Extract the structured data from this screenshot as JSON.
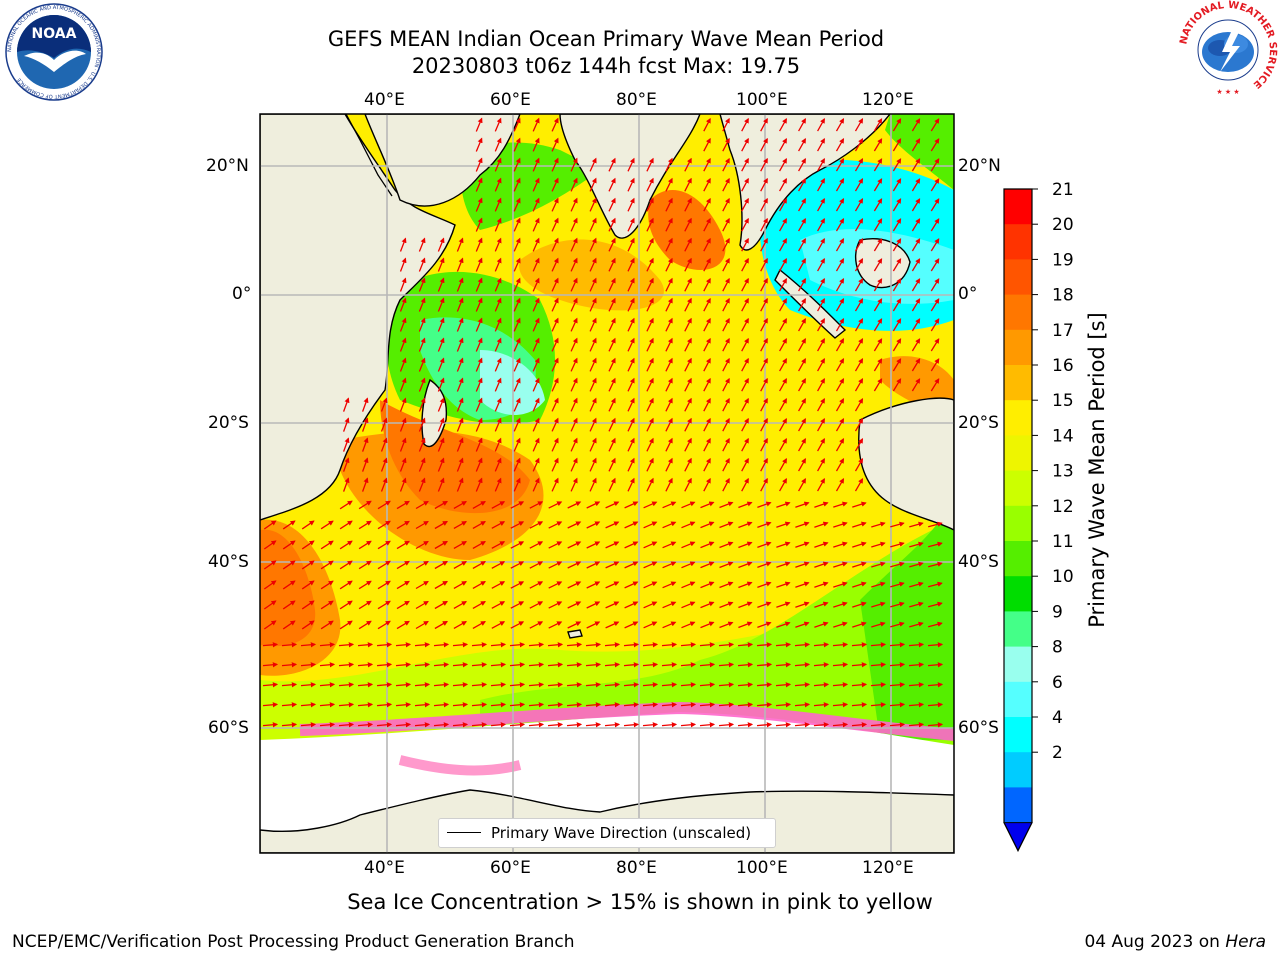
{
  "title": {
    "line1": "GEFS MEAN Indian Ocean Primary Wave Mean Period",
    "line2": "20230803 t06z 144h fcst   Max: 19.75"
  },
  "axes": {
    "lon_labels": [
      "40°E",
      "60°E",
      "80°E",
      "100°E",
      "120°E"
    ],
    "lat_labels": [
      "20°N",
      "0°",
      "20°S",
      "40°S",
      "60°S"
    ]
  },
  "colorbar": {
    "label": "Primary Wave Mean Period [s]",
    "ticks": [
      "21",
      "20",
      "19",
      "18",
      "17",
      "16",
      "15",
      "14",
      "13",
      "12",
      "11",
      "10",
      "9",
      "8",
      "6",
      "4",
      "2"
    ],
    "colors": [
      "#ff0000",
      "#ff3300",
      "#ff5500",
      "#ff7700",
      "#ff9900",
      "#ffbb00",
      "#ffee00",
      "#eef500",
      "#ccff00",
      "#99ff00",
      "#55ee00",
      "#00dd00",
      "#44ff88",
      "#99ffee",
      "#55ffff",
      "#00ffff",
      "#00ccff",
      "#0066ff"
    ],
    "extend_color": "#0000ee"
  },
  "legend": {
    "label": "Primary Wave Direction (unscaled)"
  },
  "caption": "Sea Ice Concentration > 15% is shown in pink to yellow",
  "footer": {
    "left": "NCEP/EMC/Verification Post Processing Product Generation Branch",
    "right_date": "04 Aug 2023 on ",
    "right_host": "Hera"
  },
  "logos": {
    "noaa": "NOAA",
    "noaa_ring": "NATIONAL OCEANIC AND ATMOSPHERIC ADMINISTRATION · U.S. DEPARTMENT OF COMMERCE",
    "nws_ring": "NATIONAL WEATHER SERVICE"
  },
  "colors": {
    "land": "#efeedd",
    "ocean_yellow": "#ffee00",
    "ice": "#ff66cc",
    "arrow": "#ee0000"
  }
}
